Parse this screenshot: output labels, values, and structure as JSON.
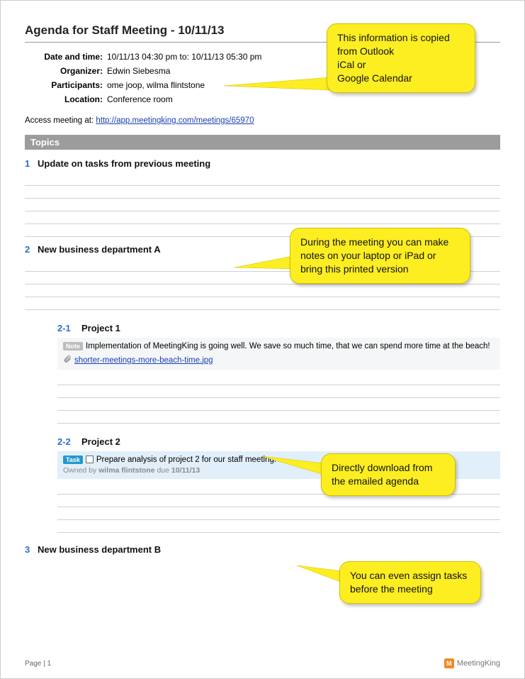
{
  "title": "Agenda for Staff Meeting - 10/11/13",
  "meta": {
    "date_label": "Date and time:",
    "date_value": "10/11/13 04:30 pm to: 10/11/13 05:30 pm",
    "organizer_label": "Organizer:",
    "organizer_value": "Edwin Siebesma",
    "participants_label": "Participants:",
    "participants_value": "ome joop, wilma flintstone",
    "location_label": "Location:",
    "location_value": "Conference room"
  },
  "access": {
    "prefix": "Access meeting at: ",
    "url": "http://app.meetingking.com/meetings/65970"
  },
  "section_header": "Topics",
  "topics": {
    "t1": {
      "num": "1",
      "title": "Update on tasks from previous meeting"
    },
    "t2": {
      "num": "2",
      "title": "New business department A"
    },
    "t2_1": {
      "num": "2-1",
      "title": "Project 1"
    },
    "t2_2": {
      "num": "2-2",
      "title": "Project 2"
    },
    "t3": {
      "num": "3",
      "title": "New business department B"
    }
  },
  "note": {
    "tag": "Note",
    "text": "Implementation of MeetingKing is going well. We save so much time, that we can spend more time at the beach!",
    "attachment": "shorter-meetings-more-beach-time.jpg"
  },
  "task": {
    "tag": "Task",
    "text": "Prepare analysis of project 2 for our staff meeting.",
    "owner_prefix": "Owned by ",
    "owner": "wilma flintstone",
    "due_prefix": "  due ",
    "due": "10/11/13"
  },
  "footer": {
    "page": "Page | 1",
    "brand": "MeetingKing",
    "logo_letter": "M"
  },
  "callouts": {
    "c1": "This information is copied from Outlook\niCal or\nGoogle Calendar",
    "c2": "During the meeting you can make notes on your laptop or iPad or bring this printed version",
    "c3": "Directly download from the emailed agenda",
    "c4": "You can even assign tasks before the meeting"
  },
  "colors": {
    "callout_bg": "#fcee21",
    "callout_border": "#d4c000",
    "topic_num": "#2a6fc9",
    "section_bar": "#9c9c9c",
    "link": "#1a3fb3",
    "note_bg": "#f5f6f7",
    "task_bg": "#e1effa",
    "task_tag": "#2199cc",
    "note_tag": "#bdbdbd",
    "logo_bg": "#f08a24"
  }
}
